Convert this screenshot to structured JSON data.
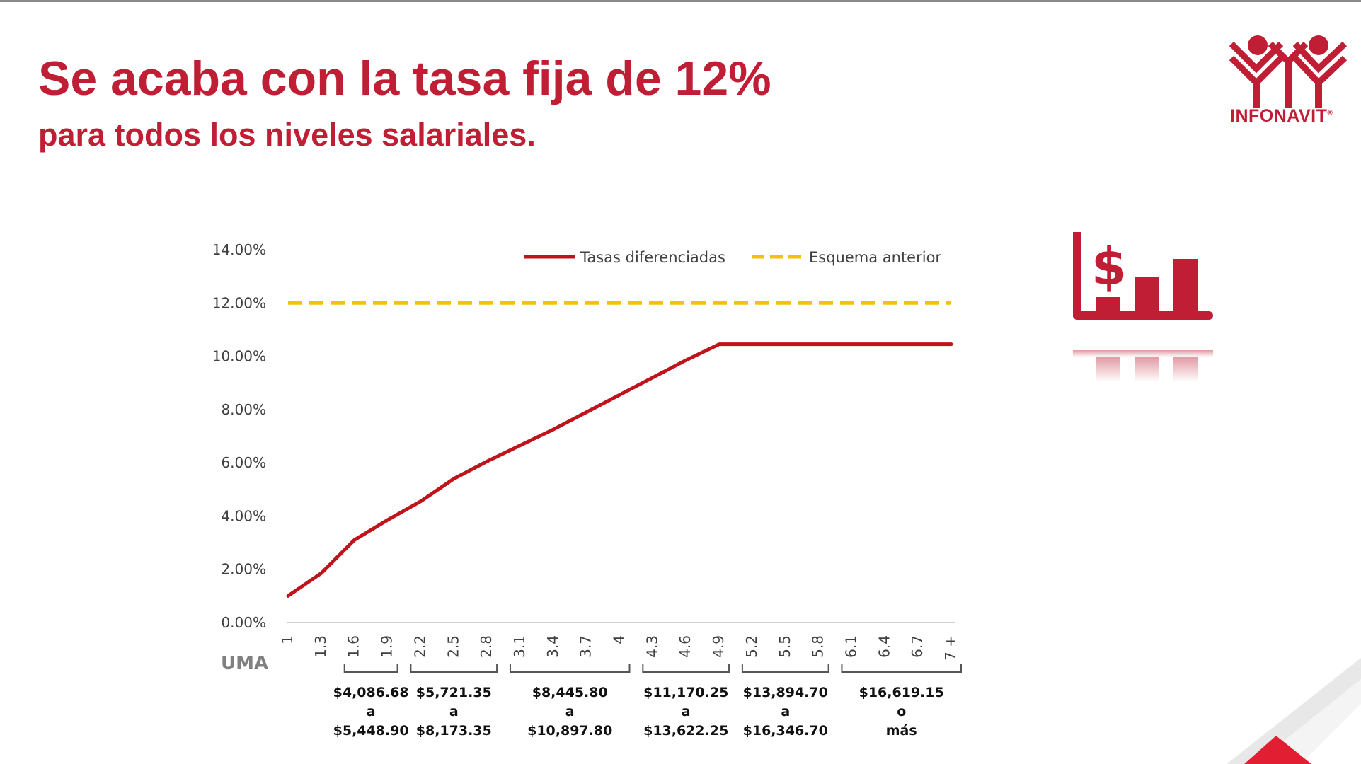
{
  "header": {
    "title": "Se acaba con la tasa fija de 12%",
    "subtitle": "para todos los niveles salariales."
  },
  "logo": {
    "text": "INFONAVIT",
    "mark": "®",
    "icon": "infonavit-houses-icon"
  },
  "colors": {
    "brand_red": "#c01e34",
    "line_red": "#c0141c",
    "dashed_yellow": "#f2c20a",
    "axis_text": "#404040"
  },
  "chart_data": {
    "type": "line",
    "x_prefix_label": "UMA",
    "y_ticks": [
      "0.00%",
      "2.00%",
      "4.00%",
      "6.00%",
      "8.00%",
      "10.00%",
      "12.00%",
      "14.00%"
    ],
    "ylim": [
      0,
      14
    ],
    "x": [
      "1",
      "1.3",
      "1.6",
      "1.9",
      "2.2",
      "2.5",
      "2.8",
      "3.1",
      "3.4",
      "3.7",
      "4",
      "4.3",
      "4.6",
      "4.9",
      "5.2",
      "5.5",
      "5.8",
      "6.1",
      "6.4",
      "6.7",
      "7 +"
    ],
    "series": [
      {
        "name": "Tasas diferenciadas",
        "color": "#c0141c",
        "style": "solid",
        "values": [
          1.0,
          1.85,
          3.1,
          3.85,
          4.55,
          5.4,
          6.05,
          6.65,
          7.25,
          7.9,
          8.55,
          9.2,
          9.85,
          10.45,
          10.45,
          10.45,
          10.45,
          10.45,
          10.45,
          10.45,
          10.45
        ]
      },
      {
        "name": "Esquema anterior",
        "color": "#f2c20a",
        "style": "dashed",
        "values": [
          12.0,
          12.0,
          12.0,
          12.0,
          12.0,
          12.0,
          12.0,
          12.0,
          12.0,
          12.0,
          12.0,
          12.0,
          12.0,
          12.0,
          12.0,
          12.0,
          12.0,
          12.0,
          12.0,
          12.0,
          12.0
        ]
      }
    ],
    "salary_ranges": [
      {
        "from_index": 2,
        "to_index": 3,
        "lines": [
          "$4,086.68",
          "a",
          "$5,448.90"
        ]
      },
      {
        "from_index": 4,
        "to_index": 6,
        "lines": [
          "$5,721.35",
          "a",
          "$8,173.35"
        ]
      },
      {
        "from_index": 7,
        "to_index": 10,
        "lines": [
          "$8,445.80",
          "a",
          "$10,897.80"
        ]
      },
      {
        "from_index": 11,
        "to_index": 13,
        "lines": [
          "$11,170.25",
          "a",
          "$13,622.25"
        ]
      },
      {
        "from_index": 14,
        "to_index": 16,
        "lines": [
          "$13,894.70",
          "a",
          "$16,346.70"
        ]
      },
      {
        "from_index": 17,
        "to_index": 20,
        "lines": [
          "$16,619.15",
          "o",
          "más"
        ]
      }
    ],
    "legend_position": "top-right"
  },
  "side_icon": "dollar-bar-chart-icon",
  "decoration": "corner-triangle"
}
